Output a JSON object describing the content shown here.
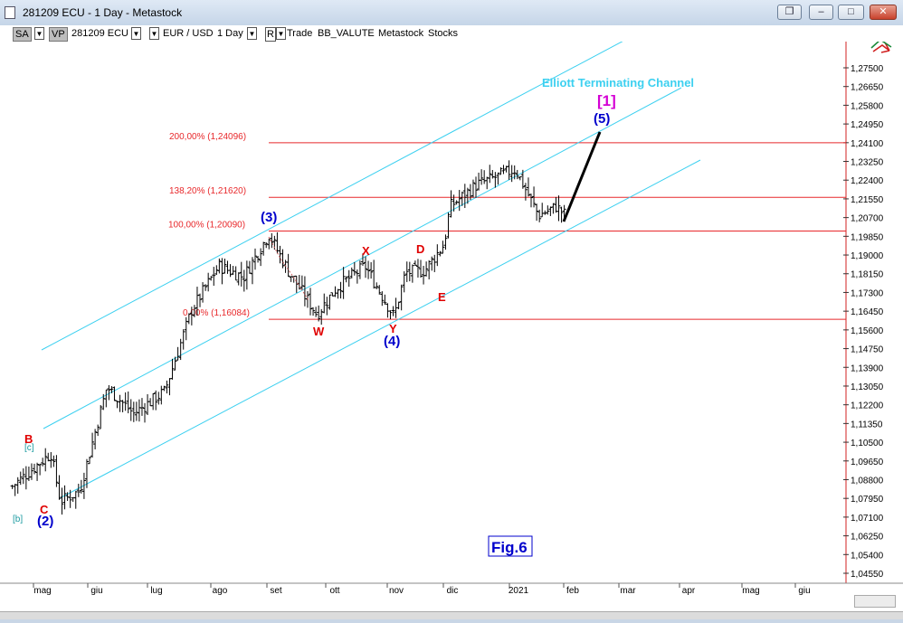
{
  "window": {
    "title": "281209 ECU - 1 Day - Metastock",
    "buttons": [
      "restore-down",
      "minimize",
      "maximize",
      "close"
    ]
  },
  "toolbar": {
    "sa": "SA",
    "vp": "VP",
    "security": "281209 ECU",
    "pair": "EUR / USD",
    "period": "1 Day",
    "r": "R",
    "items": [
      "Trade",
      "BB_VALUTE",
      "Metastock",
      "Stocks"
    ]
  },
  "chart_data": {
    "type": "ohlc",
    "title": "",
    "y_ticks": [
      "1,27500",
      "1,26650",
      "1,25800",
      "1,24950",
      "1,24100",
      "1,23250",
      "1,22400",
      "1,21550",
      "1,20700",
      "1,19850",
      "1,19000",
      "1,18150",
      "1,17300",
      "1,16450",
      "1,15600",
      "1,14750",
      "1,13900",
      "1,13050",
      "1,12200",
      "1,11350",
      "1,10500",
      "1,09650",
      "1,08800",
      "1,07950",
      "1,07100",
      "1,06250",
      "1,05400",
      "1,04550"
    ],
    "ylim": [
      1.0455,
      1.275
    ],
    "x_labels": [
      "mag",
      "giu",
      "lug",
      "ago",
      "set",
      "ott",
      "nov",
      "dic",
      "2021",
      "feb",
      "mar",
      "apr",
      "mag",
      "giu"
    ],
    "fib_levels": [
      {
        "label": "200,00% (1,24096)",
        "value": 1.24096
      },
      {
        "label": "138,20% (1,21620)",
        "value": 1.2162
      },
      {
        "label": "100,00% (1,20090)",
        "value": 1.2009
      },
      {
        "label": "0,00% (1,16084)",
        "value": 1.16084
      }
    ],
    "wave_labels": [
      {
        "text": "B",
        "color": "#e00000"
      },
      {
        "text": "[c]",
        "color": "#1a9aa0"
      },
      {
        "text": "[b]",
        "color": "#1a9aa0"
      },
      {
        "text": "C",
        "color": "#e00000"
      },
      {
        "text": "(2)",
        "color": "#0000cc"
      },
      {
        "text": "(3)",
        "color": "#0000cc"
      },
      {
        "text": "W",
        "color": "#e00000"
      },
      {
        "text": "X",
        "color": "#e00000"
      },
      {
        "text": "Y",
        "color": "#e00000"
      },
      {
        "text": "(4)",
        "color": "#0000cc"
      },
      {
        "text": "D",
        "color": "#e00000"
      },
      {
        "text": "E",
        "color": "#e00000"
      },
      {
        "text": "(5)",
        "color": "#0000cc"
      },
      {
        "text": "[1]",
        "color": "#d400d4"
      }
    ],
    "channel_title": "Elliott Terminating Channel",
    "fig_label": "Fig.6",
    "anchors": [
      {
        "date": "Apr 20",
        "price": 1.085
      },
      {
        "date": "May 10",
        "price": 1.1
      },
      {
        "date": "May 15",
        "price": 1.078
      },
      {
        "date": "May 25",
        "price": 1.083
      },
      {
        "date": "Jun 08",
        "price": 1.13
      },
      {
        "date": "Jun 22",
        "price": 1.118
      },
      {
        "date": "Jul 08",
        "price": 1.128
      },
      {
        "date": "Jul 22",
        "price": 1.165
      },
      {
        "date": "Aug 05",
        "price": 1.185
      },
      {
        "date": "Aug 18",
        "price": 1.18
      },
      {
        "date": "Aug 31",
        "price": 1.1995
      },
      {
        "date": "Sep 10",
        "price": 1.183
      },
      {
        "date": "Sep 25",
        "price": 1.163
      },
      {
        "date": "Oct 05",
        "price": 1.175
      },
      {
        "date": "Oct 20",
        "price": 1.185
      },
      {
        "date": "Nov 04",
        "price": 1.162
      },
      {
        "date": "Nov 10",
        "price": 1.182
      },
      {
        "date": "Nov 20",
        "price": 1.183
      },
      {
        "date": "Nov 30",
        "price": 1.195
      },
      {
        "date": "Dec 03",
        "price": 1.212
      },
      {
        "date": "Dec 17",
        "price": 1.222
      },
      {
        "date": "Jan 06",
        "price": 1.229
      },
      {
        "date": "Jan 18",
        "price": 1.208
      },
      {
        "date": "Jan 27",
        "price": 1.212
      },
      {
        "date": "Feb 01",
        "price": 1.208
      }
    ]
  },
  "colors": {
    "fib_line": "#e8282b",
    "channel": "#3cd0f0",
    "bars": "#000000",
    "wave_red": "#e00000",
    "wave_blue": "#0000cc",
    "wave_magenta": "#d400d4",
    "axis_sep": "#d02020"
  },
  "icons": {
    "top_right": "cross-arrows-icon"
  }
}
